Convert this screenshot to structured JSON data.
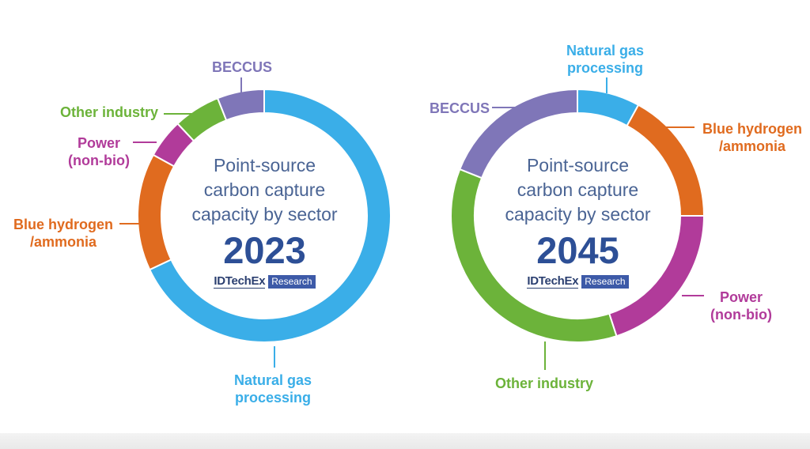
{
  "colors": {
    "natural_gas": "#3aaee8",
    "blue_hydrogen": "#e06b1f",
    "power": "#b13b9a",
    "other_industry": "#6cb33a",
    "beccus": "#7f76b8",
    "center_text": "#4a6494",
    "year_text": "#2d4f96"
  },
  "charts": [
    {
      "center_lines": [
        "Point-source",
        "carbon capture",
        "capacity by sector"
      ],
      "year": "2023",
      "brand": {
        "main": "IDTechEx",
        "sub": "Research"
      }
    },
    {
      "center_lines": [
        "Point-source",
        "carbon capture",
        "capacity by sector"
      ],
      "year": "2045",
      "brand": {
        "main": "IDTechEx",
        "sub": "Research"
      }
    }
  ],
  "chart_data": [
    {
      "type": "pie",
      "title": "Point-source carbon capture capacity by sector 2023",
      "unit": "share (approx.)",
      "slices": [
        {
          "label": "Natural gas processing",
          "value": 68,
          "color": "#3aaee8"
        },
        {
          "label": "Blue hydrogen /ammonia",
          "value": 15,
          "color": "#e06b1f"
        },
        {
          "label": "Power (non-bio)",
          "value": 5,
          "color": "#b13b9a"
        },
        {
          "label": "Other industry",
          "value": 6,
          "color": "#6cb33a"
        },
        {
          "label": "BECCUS",
          "value": 6,
          "color": "#7f76b8"
        }
      ]
    },
    {
      "type": "pie",
      "title": "Point-source carbon capture capacity by sector 2045",
      "unit": "share (approx.)",
      "slices": [
        {
          "label": "Natural gas processing",
          "value": 8,
          "color": "#3aaee8"
        },
        {
          "label": "Blue hydrogen /ammonia",
          "value": 17,
          "color": "#e06b1f"
        },
        {
          "label": "Power (non-bio)",
          "value": 20,
          "color": "#b13b9a"
        },
        {
          "label": "Other industry",
          "value": 36,
          "color": "#6cb33a"
        },
        {
          "label": "BECCUS",
          "value": 19,
          "color": "#7f76b8"
        }
      ]
    }
  ],
  "labels": [
    {
      "bec": [
        "BECCUS"
      ],
      "other": [
        "Other industry"
      ],
      "power": [
        "Power",
        "(non-bio)"
      ],
      "blue": [
        "Blue hydrogen",
        "/ammonia"
      ],
      "ng": [
        "Natural gas",
        "processing"
      ]
    },
    {
      "ng": [
        "Natural gas",
        "processing"
      ],
      "blue": [
        "Blue hydrogen",
        "/ammonia"
      ],
      "power": [
        "Power",
        "(non-bio)"
      ],
      "other": [
        "Other industry"
      ],
      "bec": [
        "BECCUS"
      ]
    }
  ]
}
